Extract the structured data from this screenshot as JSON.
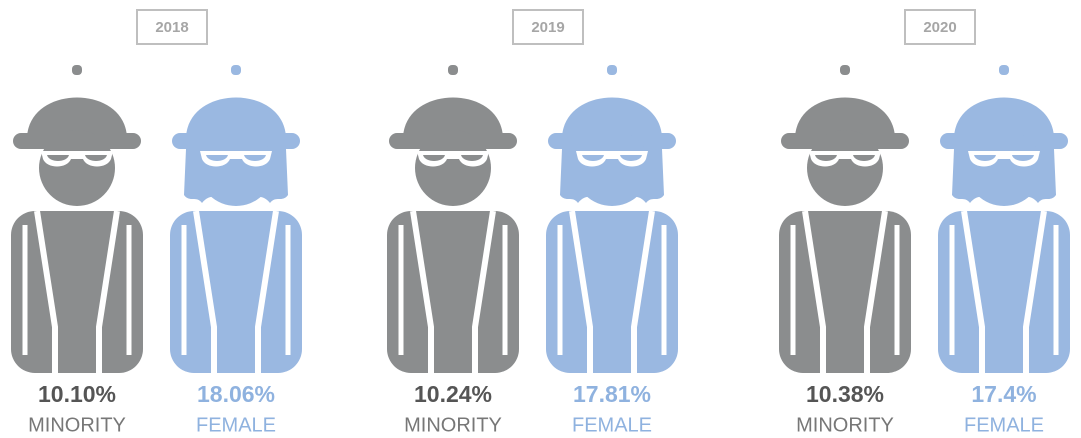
{
  "years": [
    {
      "year": "2018",
      "minority": {
        "value": "10.10%",
        "label": "MINORITY"
      },
      "female": {
        "value": "18.06%",
        "label": "FEMALE"
      }
    },
    {
      "year": "2019",
      "minority": {
        "value": "10.24%",
        "label": "MINORITY"
      },
      "female": {
        "value": "17.81%",
        "label": "FEMALE"
      }
    },
    {
      "year": "2020",
      "minority": {
        "value": "10.38%",
        "label": "MINORITY"
      },
      "female": {
        "value": "17.4%",
        "label": "FEMALE"
      }
    }
  ]
}
